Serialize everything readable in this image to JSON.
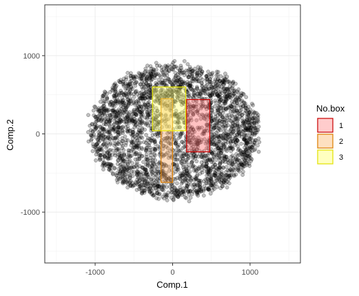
{
  "chart_data": {
    "type": "scatter",
    "xlabel": "Comp.1",
    "ylabel": "Comp.2",
    "xlim": [
      -1650,
      1650
    ],
    "ylim": [
      -1650,
      1650
    ],
    "x_ticks": [
      -1000,
      0,
      1000
    ],
    "y_ticks": [
      -1000,
      0,
      1000
    ],
    "x_tick_labels": [
      "-1000",
      "0",
      "1000"
    ],
    "y_tick_labels": [
      "-1000",
      "0",
      "1000"
    ],
    "grid": true,
    "legend_placement": "right",
    "points_description_cloud": {
      "center": [
        30,
        30
      ],
      "x_range": [
        -1150,
        1100
      ],
      "y_range": [
        -900,
        870
      ],
      "count_approx": 3000
    },
    "point_color": "#000000",
    "point_alpha": 0.25,
    "boxes": [
      {
        "id": "1",
        "x": [
          180,
          480
        ],
        "y": [
          -230,
          440
        ],
        "fill": "#ff6666",
        "stroke": "#cc0000"
      },
      {
        "id": "2",
        "x": [
          -150,
          0
        ],
        "y": [
          -620,
          450
        ],
        "fill": "#f4a460",
        "stroke": "#e08000"
      },
      {
        "id": "3",
        "x": [
          -260,
          170
        ],
        "y": [
          40,
          600
        ],
        "fill": "#ffff66",
        "stroke": "#e6e600"
      }
    ],
    "legend": {
      "title": "No.box",
      "entries": [
        {
          "label": "1",
          "fill": "#ffcccc",
          "stroke": "#cc0000"
        },
        {
          "label": "2",
          "fill": "#fde0c0",
          "stroke": "#e08000"
        },
        {
          "label": "3",
          "fill": "#ffffc0",
          "stroke": "#e6e600"
        }
      ]
    }
  }
}
